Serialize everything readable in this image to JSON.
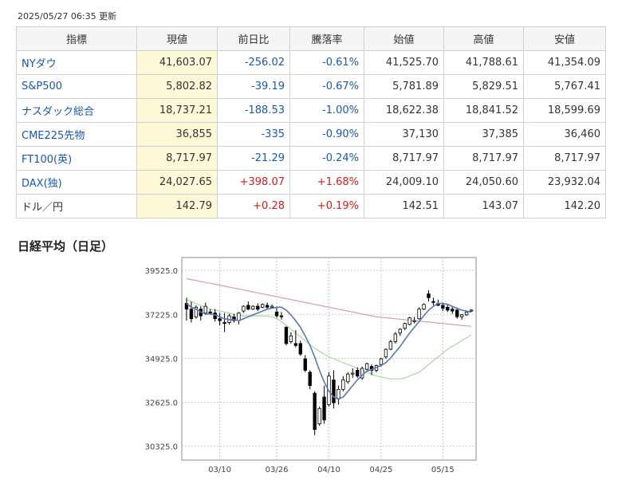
{
  "updated": "2025/05/27 06:35 更新",
  "table": {
    "headers": [
      "指標",
      "現値",
      "前日比",
      "騰落率",
      "始値",
      "高値",
      "安値"
    ],
    "rows": [
      {
        "name": "NYダウ",
        "link": true,
        "current": "41,603.07",
        "change": "-256.02",
        "pct": "-0.61%",
        "open": "41,525.70",
        "high": "41,788.61",
        "low": "41,354.09",
        "dir": "neg"
      },
      {
        "name": "S&P500",
        "link": true,
        "current": "5,802.82",
        "change": "-39.19",
        "pct": "-0.67%",
        "open": "5,781.89",
        "high": "5,829.51",
        "low": "5,767.41",
        "dir": "neg"
      },
      {
        "name": "ナスダック総合",
        "link": true,
        "current": "18,737.21",
        "change": "-188.53",
        "pct": "-1.00%",
        "open": "18,622.38",
        "high": "18,841.52",
        "low": "18,599.69",
        "dir": "neg"
      },
      {
        "name": "CME225先物",
        "link": true,
        "current": "36,855",
        "change": "-335",
        "pct": "-0.90%",
        "open": "37,130",
        "high": "37,385",
        "low": "36,460",
        "dir": "neg"
      },
      {
        "name": "FT100(英)",
        "link": true,
        "current": "8,717.97",
        "change": "-21.29",
        "pct": "-0.24%",
        "open": "8,717.97",
        "high": "8,717.97",
        "low": "8,717.97",
        "dir": "neg"
      },
      {
        "name": "DAX(独)",
        "link": true,
        "current": "24,027.65",
        "change": "+398.07",
        "pct": "+1.68%",
        "open": "24,009.10",
        "high": "24,050.60",
        "low": "23,932.04",
        "dir": "pos"
      },
      {
        "name": "ドル／円",
        "link": false,
        "current": "142.79",
        "change": "+0.28",
        "pct": "+0.19%",
        "open": "142.51",
        "high": "143.07",
        "low": "142.20",
        "dir": "pos"
      }
    ]
  },
  "chart_title": "日経平均（日足）",
  "chart_data": {
    "type": "candlestick",
    "title": "日経平均（日足）",
    "y_ticks": [
      "39525.0",
      "37225.0",
      "34925.0",
      "32625.0",
      "30325.0"
    ],
    "x_ticks": [
      "03/10",
      "03/26",
      "04/10",
      "04/25",
      "05/15"
    ],
    "ylim": [
      29600,
      40200
    ],
    "num_days": 61,
    "x_tick_index": [
      7,
      19,
      30,
      41,
      54
    ],
    "candles": [
      {
        "o": 37800,
        "h": 38100,
        "l": 36900,
        "c": 37500
      },
      {
        "o": 37500,
        "h": 37900,
        "l": 36800,
        "c": 37000
      },
      {
        "o": 37100,
        "h": 37700,
        "l": 37000,
        "c": 37600
      },
      {
        "o": 37500,
        "h": 37650,
        "l": 36900,
        "c": 37150
      },
      {
        "o": 37300,
        "h": 37850,
        "l": 37200,
        "c": 37650
      },
      {
        "o": 37350,
        "h": 37500,
        "l": 37200,
        "c": 37300
      },
      {
        "o": 37300,
        "h": 37500,
        "l": 36850,
        "c": 37000
      },
      {
        "o": 37000,
        "h": 37300,
        "l": 36650,
        "c": 36900
      },
      {
        "o": 36800,
        "h": 37300,
        "l": 36300,
        "c": 36750
      },
      {
        "o": 36800,
        "h": 37250,
        "l": 36700,
        "c": 37150
      },
      {
        "o": 37100,
        "h": 37250,
        "l": 36800,
        "c": 36900
      },
      {
        "o": 36900,
        "h": 37350,
        "l": 36700,
        "c": 37300
      },
      {
        "o": 37400,
        "h": 37700,
        "l": 37300,
        "c": 37650
      },
      {
        "o": 37700,
        "h": 37900,
        "l": 37450,
        "c": 37500
      },
      {
        "o": 37500,
        "h": 37700,
        "l": 37450,
        "c": 37650
      },
      {
        "o": 37650,
        "h": 37800,
        "l": 37400,
        "c": 37500
      },
      {
        "o": 37600,
        "h": 37800,
        "l": 37550,
        "c": 37750
      },
      {
        "o": 37700,
        "h": 37850,
        "l": 37500,
        "c": 37600
      },
      {
        "o": 37600,
        "h": 37750,
        "l": 37550,
        "c": 37650
      },
      {
        "o": 37350,
        "h": 37600,
        "l": 37050,
        "c": 37150
      },
      {
        "o": 37150,
        "h": 37350,
        "l": 36950,
        "c": 37100
      },
      {
        "o": 36550,
        "h": 36600,
        "l": 35600,
        "c": 35700
      },
      {
        "o": 35800,
        "h": 36300,
        "l": 35700,
        "c": 36100
      },
      {
        "o": 35700,
        "h": 36400,
        "l": 35500,
        "c": 35600
      },
      {
        "o": 35700,
        "h": 35850,
        "l": 35050,
        "c": 35150
      },
      {
        "o": 34900,
        "h": 35100,
        "l": 34200,
        "c": 34300
      },
      {
        "o": 34200,
        "h": 34300,
        "l": 33300,
        "c": 33500
      },
      {
        "o": 33100,
        "h": 33200,
        "l": 30900,
        "c": 31200
      },
      {
        "o": 31500,
        "h": 32400,
        "l": 31400,
        "c": 32300
      },
      {
        "o": 32900,
        "h": 33500,
        "l": 31500,
        "c": 31700
      },
      {
        "o": 32500,
        "h": 34200,
        "l": 32400,
        "c": 34000
      },
      {
        "o": 33800,
        "h": 34300,
        "l": 32300,
        "c": 32600
      },
      {
        "o": 32800,
        "h": 33500,
        "l": 32500,
        "c": 33300
      },
      {
        "o": 33300,
        "h": 34000,
        "l": 33200,
        "c": 33800
      },
      {
        "o": 33700,
        "h": 34200,
        "l": 33600,
        "c": 34100
      },
      {
        "o": 34100,
        "h": 34400,
        "l": 33900,
        "c": 34150
      },
      {
        "o": 34300,
        "h": 34450,
        "l": 33900,
        "c": 34000
      },
      {
        "o": 33900,
        "h": 34500,
        "l": 33800,
        "c": 34400
      },
      {
        "o": 34350,
        "h": 34700,
        "l": 34300,
        "c": 34650
      },
      {
        "o": 34500,
        "h": 34600,
        "l": 34050,
        "c": 34300
      },
      {
        "o": 34300,
        "h": 34600,
        "l": 34200,
        "c": 34550
      },
      {
        "o": 34600,
        "h": 34950,
        "l": 34500,
        "c": 34900
      },
      {
        "o": 35000,
        "h": 35450,
        "l": 34900,
        "c": 35400
      },
      {
        "o": 35400,
        "h": 35900,
        "l": 35350,
        "c": 35800
      },
      {
        "o": 35800,
        "h": 36300,
        "l": 35700,
        "c": 36200
      },
      {
        "o": 36250,
        "h": 36500,
        "l": 36100,
        "c": 36450
      },
      {
        "o": 36500,
        "h": 36800,
        "l": 36400,
        "c": 36750
      },
      {
        "o": 36700,
        "h": 37100,
        "l": 36650,
        "c": 37050
      },
      {
        "o": 36850,
        "h": 37100,
        "l": 36750,
        "c": 36900
      },
      {
        "o": 37000,
        "h": 37600,
        "l": 36950,
        "c": 37500
      },
      {
        "o": 37500,
        "h": 37800,
        "l": 37450,
        "c": 37750
      },
      {
        "o": 38300,
        "h": 38500,
        "l": 37900,
        "c": 38100
      },
      {
        "o": 37900,
        "h": 38100,
        "l": 37700,
        "c": 37850
      },
      {
        "o": 37800,
        "h": 38000,
        "l": 37650,
        "c": 37700
      },
      {
        "o": 37700,
        "h": 37850,
        "l": 37400,
        "c": 37550
      },
      {
        "o": 37600,
        "h": 37750,
        "l": 37350,
        "c": 37450
      },
      {
        "o": 37500,
        "h": 37650,
        "l": 37250,
        "c": 37400
      },
      {
        "o": 37450,
        "h": 37550,
        "l": 37000,
        "c": 37100
      },
      {
        "o": 37100,
        "h": 37250,
        "l": 36950,
        "c": 37200
      },
      {
        "o": 37200,
        "h": 37400,
        "l": 37150,
        "c": 37350
      },
      {
        "o": 37400,
        "h": 37500,
        "l": 37350,
        "c": 37450
      }
    ],
    "ma_short": [
      37800,
      37600,
      37500,
      37350,
      37250,
      37250,
      37200,
      37100,
      37000,
      36950,
      36950,
      36900,
      37000,
      37100,
      37200,
      37300,
      37400,
      37500,
      37550,
      37600,
      37600,
      37450,
      37200,
      36900,
      36550,
      36100,
      35600,
      35000,
      34300,
      33700,
      33200,
      32900,
      32800,
      32900,
      33200,
      33500,
      33800,
      34050,
      34250,
      34350,
      34450,
      34550,
      34700,
      34950,
      35250,
      35550,
      35900,
      36250,
      36550,
      36850,
      37150,
      37450,
      37650,
      37800,
      37800,
      37750,
      37650,
      37550,
      37450,
      37400,
      37350
    ],
    "ma_mid": [
      38000,
      37900,
      37800,
      37700,
      37600,
      37500,
      37450,
      37400,
      37350,
      37300,
      37250,
      37200,
      37150,
      37150,
      37150,
      37150,
      37150,
      37150,
      37100,
      37000,
      36850,
      36650,
      36450,
      36250,
      36050,
      35850,
      35650,
      35450,
      35300,
      35150,
      35000,
      34900,
      34800,
      34700,
      34600,
      34500,
      34400,
      34300,
      34200,
      34100,
      34000,
      33950,
      33900,
      33850,
      33850,
      33850,
      33900,
      34000,
      34100,
      34200,
      34400,
      34600,
      34800,
      35000,
      35200,
      35400,
      35550,
      35700,
      35850,
      36000,
      36150
    ],
    "ma_long": [
      39100,
      39050,
      39000,
      38950,
      38900,
      38850,
      38800,
      38750,
      38700,
      38650,
      38600,
      38550,
      38500,
      38450,
      38400,
      38350,
      38300,
      38250,
      38200,
      38150,
      38100,
      38050,
      38000,
      37950,
      37900,
      37850,
      37800,
      37750,
      37700,
      37650,
      37600,
      37550,
      37500,
      37450,
      37400,
      37350,
      37300,
      37250,
      37200,
      37150,
      37100,
      37075,
      37050,
      37025,
      37000,
      36975,
      36950,
      36925,
      36900,
      36875,
      36850,
      36825,
      36800,
      36775,
      36750,
      36725,
      36700,
      36675,
      36650,
      36625,
      36600
    ],
    "colors": {
      "up": "#ffffff",
      "down": "#000000",
      "ma_short": "#5a78b4",
      "ma_mid": "#a8d8a0",
      "ma_long": "#d8a0a0",
      "grid": "#c8c8c8"
    }
  }
}
